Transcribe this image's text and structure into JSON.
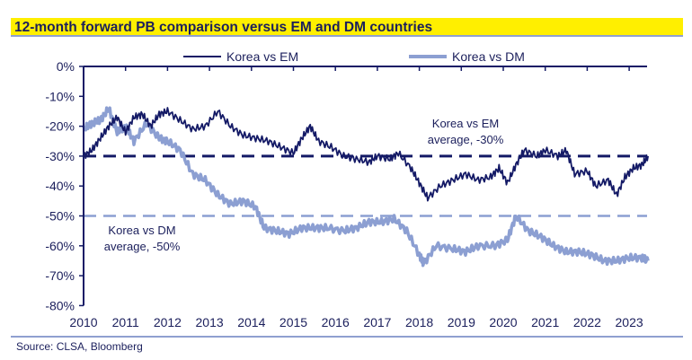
{
  "title": "12-month forward PB comparison versus EM and DM countries",
  "source": "Source: CLSA, Bloomberg",
  "colors": {
    "em": "#141a66",
    "dm": "#8c9fd2",
    "title_bg": "#ffef00"
  },
  "chart_data": {
    "type": "line",
    "title": "12-month forward PB comparison versus EM and DM countries",
    "xlabel": "",
    "ylabel": "",
    "xlim": [
      2010,
      2023.45
    ],
    "ylim": [
      -80,
      0
    ],
    "x_ticks": [
      "2010",
      "2011",
      "2012",
      "2013",
      "2014",
      "2015",
      "2016",
      "2017",
      "2018",
      "2019",
      "2020",
      "2021",
      "2022",
      "2023"
    ],
    "y_ticks": [
      "0%",
      "-10%",
      "-20%",
      "-30%",
      "-40%",
      "-50%",
      "-60%",
      "-70%",
      "-80%"
    ],
    "legend": {
      "position": "top",
      "entries": [
        "Korea vs EM",
        "Korea vs DM"
      ]
    },
    "grid": false,
    "series": [
      {
        "name": "Korea vs EM",
        "x": [
          2010.0,
          2010.2,
          2010.4,
          2010.6,
          2010.8,
          2011.0,
          2011.2,
          2011.4,
          2011.6,
          2011.8,
          2012.0,
          2012.3,
          2012.6,
          2012.9,
          2013.2,
          2013.5,
          2013.8,
          2014.1,
          2014.4,
          2014.7,
          2015.0,
          2015.2,
          2015.4,
          2015.6,
          2015.9,
          2016.2,
          2016.5,
          2016.8,
          2017.0,
          2017.3,
          2017.5,
          2017.8,
          2018.0,
          2018.2,
          2018.5,
          2018.8,
          2019.1,
          2019.4,
          2019.7,
          2019.9,
          2020.1,
          2020.3,
          2020.5,
          2020.8,
          2021.0,
          2021.3,
          2021.5,
          2021.7,
          2022.0,
          2022.2,
          2022.5,
          2022.7,
          2022.9,
          2023.1,
          2023.3,
          2023.45
        ],
        "values": [
          -30,
          -28,
          -24,
          -20,
          -17,
          -22,
          -17,
          -16,
          -20,
          -16,
          -15,
          -18,
          -21,
          -20,
          -15,
          -20,
          -23,
          -24,
          -25,
          -27,
          -29,
          -24,
          -20,
          -25,
          -27,
          -30,
          -31,
          -32,
          -30,
          -31,
          -29,
          -34,
          -39,
          -44,
          -40,
          -38,
          -36,
          -38,
          -37,
          -34,
          -39,
          -33,
          -28,
          -30,
          -28,
          -30,
          -28,
          -36,
          -35,
          -40,
          -38,
          -43,
          -37,
          -34,
          -33,
          -30
        ]
      },
      {
        "name": "Korea vs DM",
        "x": [
          2010.0,
          2010.2,
          2010.4,
          2010.6,
          2010.8,
          2011.0,
          2011.2,
          2011.5,
          2011.8,
          2012.0,
          2012.3,
          2012.6,
          2012.9,
          2013.2,
          2013.5,
          2013.8,
          2014.1,
          2014.3,
          2014.6,
          2014.9,
          2015.2,
          2015.5,
          2015.8,
          2016.2,
          2016.5,
          2016.8,
          2017.1,
          2017.4,
          2017.7,
          2018.0,
          2018.1,
          2018.4,
          2018.8,
          2019.1,
          2019.4,
          2019.8,
          2020.1,
          2020.3,
          2020.6,
          2020.9,
          2021.2,
          2021.5,
          2021.8,
          2022.1,
          2022.4,
          2022.7,
          2023.0,
          2023.3,
          2023.45
        ],
        "values": [
          -21,
          -19,
          -18,
          -14,
          -22,
          -20,
          -25,
          -19,
          -24,
          -25,
          -28,
          -36,
          -38,
          -43,
          -46,
          -45,
          -47,
          -54,
          -55,
          -56,
          -54,
          -54,
          -54,
          -55,
          -54,
          -52,
          -52,
          -51,
          -55,
          -63,
          -66,
          -60,
          -61,
          -62,
          -60,
          -60,
          -58,
          -50,
          -55,
          -57,
          -60,
          -62,
          -62,
          -63,
          -65,
          -65,
          -64,
          -64,
          -65
        ]
      }
    ],
    "reference_lines": [
      {
        "value": -30,
        "label_line1": "Korea vs EM",
        "label_line2": "average, -30%"
      },
      {
        "value": -50,
        "label_line1": "Korea vs DM",
        "label_line2": "average, -50%"
      }
    ]
  }
}
